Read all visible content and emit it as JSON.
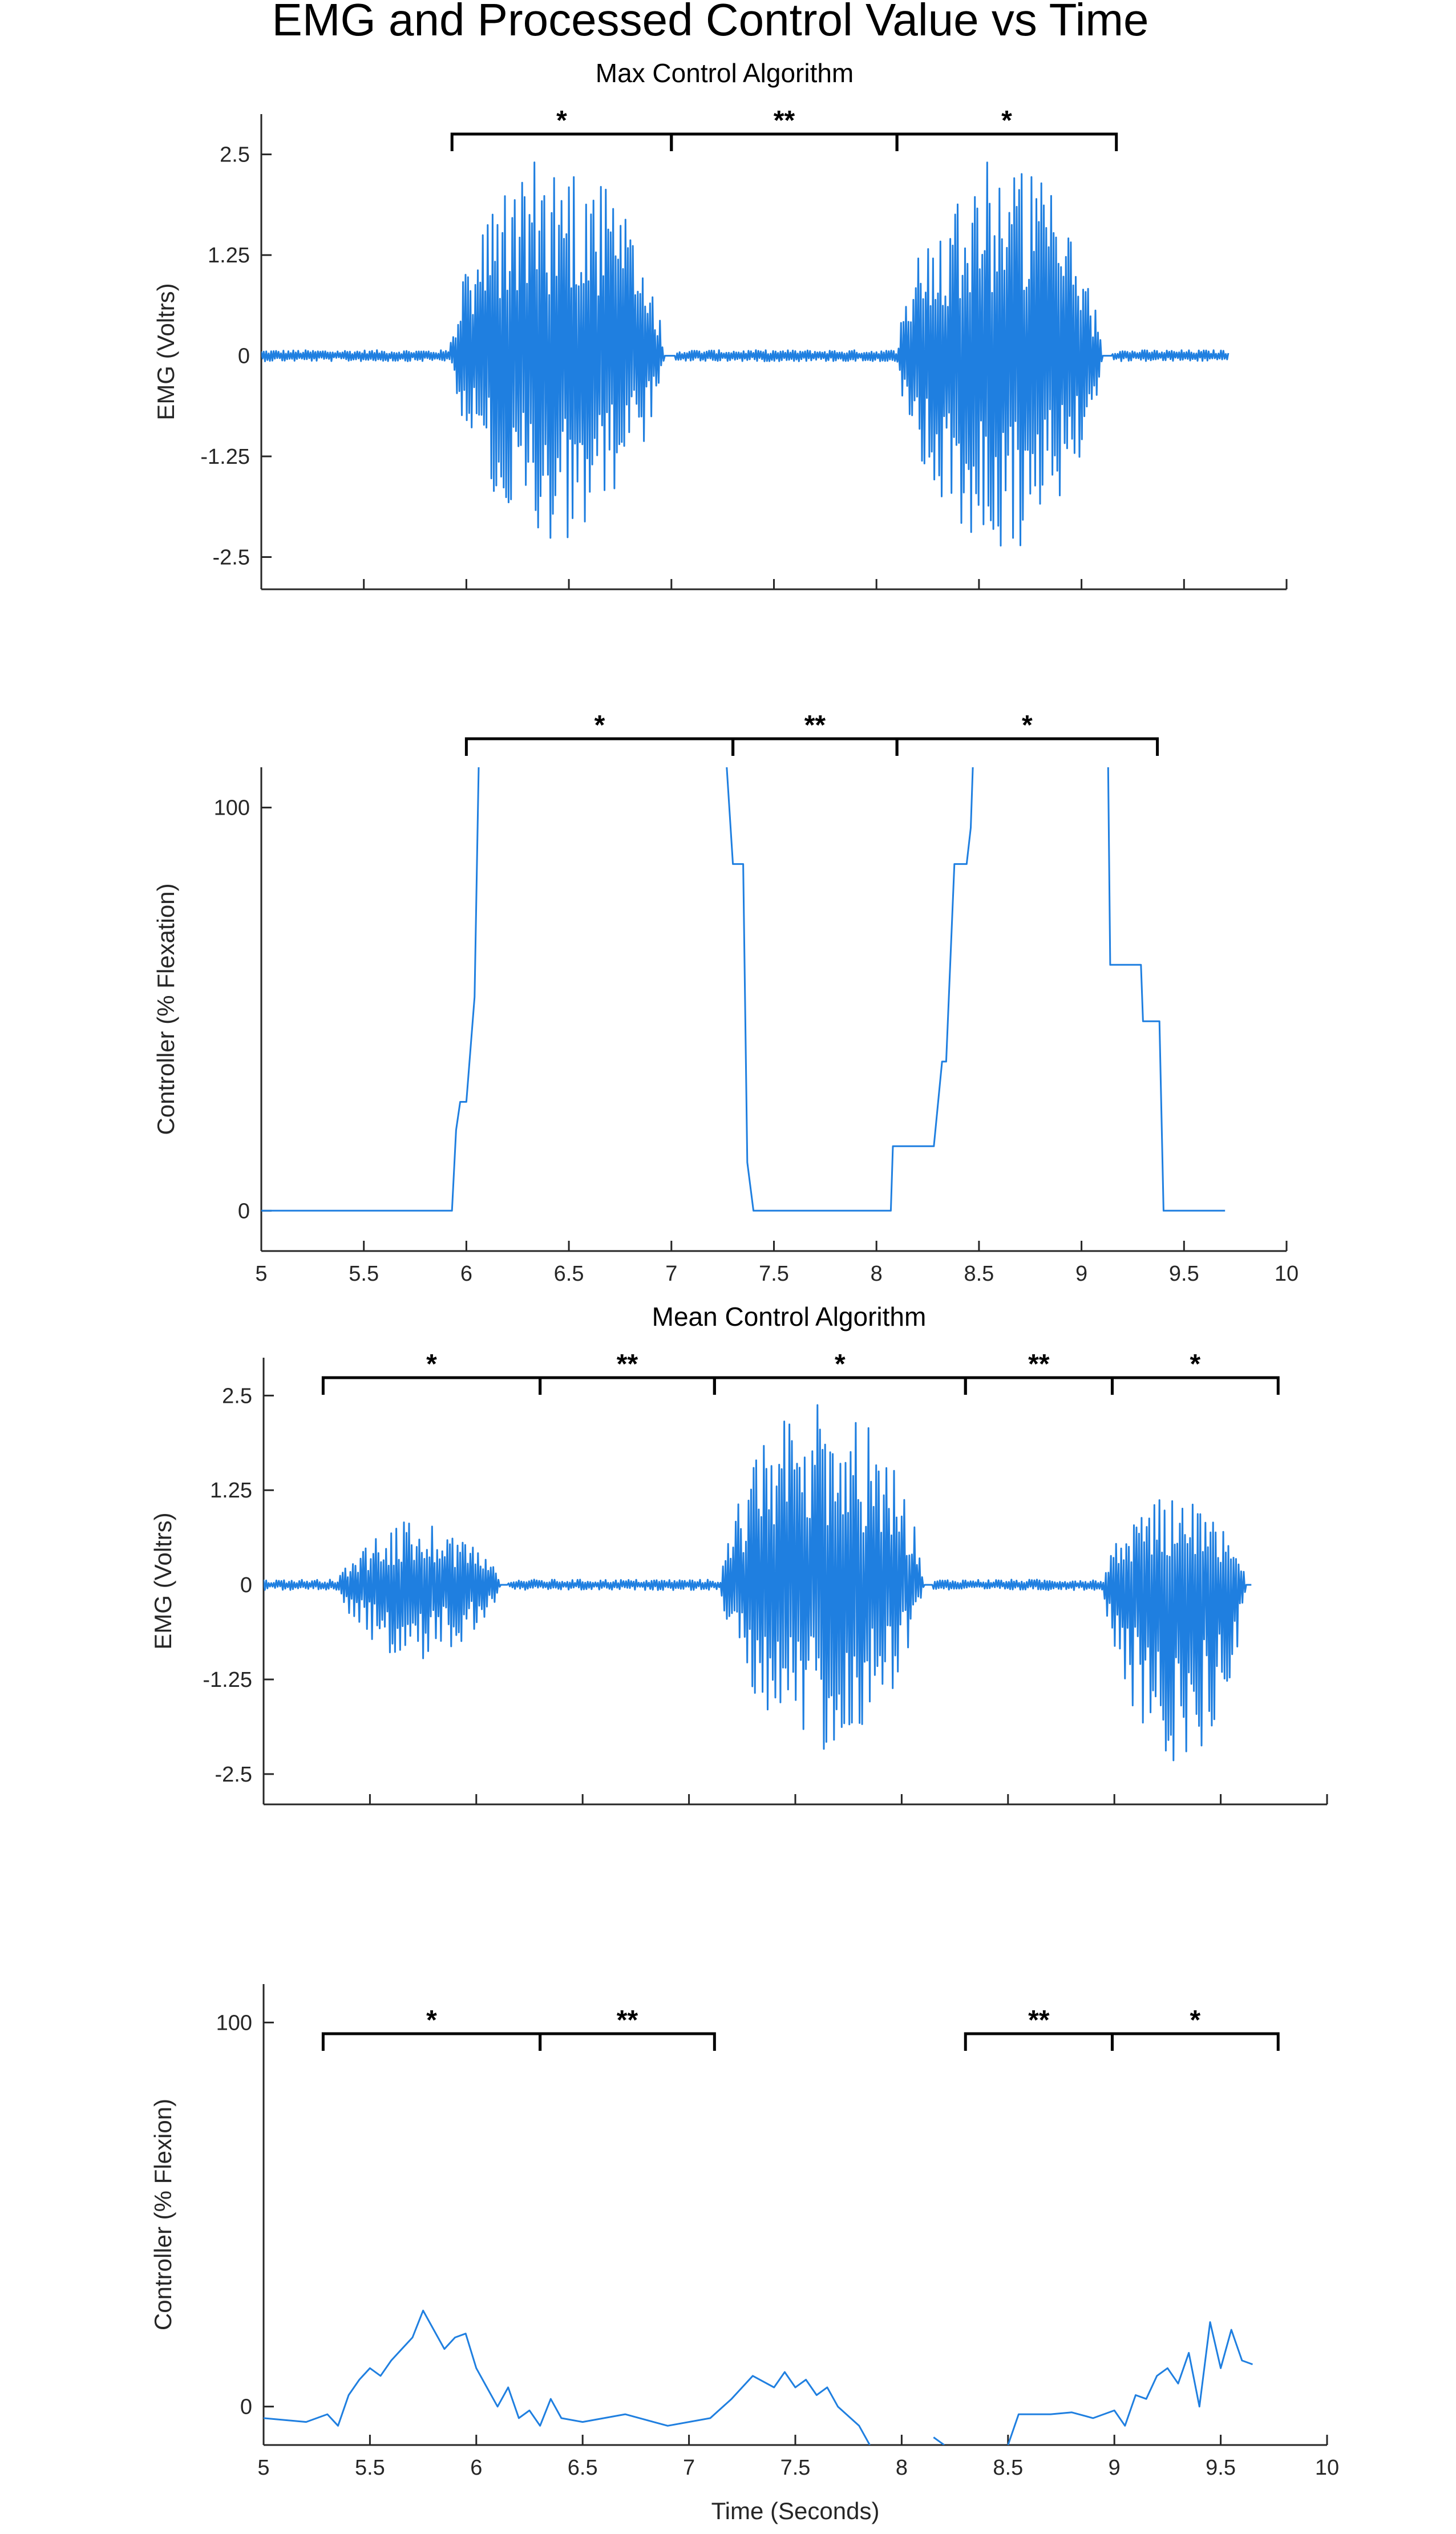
{
  "figure": {
    "title": "EMG and Processed Control Value vs Time",
    "subtitle_max": "Max Control Algorithm",
    "subtitle_mean": "Mean Control Algorithm",
    "line_color": "#1f7fe0"
  },
  "chart_data": [
    {
      "type": "line",
      "panel": "max-emg",
      "title": "Max Control Algorithm",
      "xlabel": "",
      "ylabel": "EMG (Voltrs)",
      "xlim": [
        5,
        10
      ],
      "ylim": [
        -2.9,
        3.0
      ],
      "xticks": [
        5,
        5.5,
        6,
        6.5,
        7,
        7.5,
        8,
        8.5,
        9,
        9.5,
        10
      ],
      "xticklabels": [],
      "yticks": [
        -2.5,
        -1.25,
        0,
        1.25,
        2.5
      ],
      "yticklabels": [
        "-2.5",
        "-1.25",
        "0",
        "1.25",
        "2.5"
      ],
      "grid": false,
      "series": [
        {
          "signal": "emg",
          "t_start": 5.0,
          "t_end": 9.72,
          "bursts": [
            {
              "start": 5.92,
              "end": 7.02,
              "peak_pos": 2.5,
              "peak_neg": -2.3
            },
            {
              "start": 8.1,
              "end": 9.15,
              "peak_pos": 2.5,
              "peak_neg": -2.5
            }
          ],
          "baseline_noise": 0.05
        }
      ],
      "brackets": [
        {
          "x1": 5.93,
          "x2": 7.0,
          "label": "*"
        },
        {
          "x1": 7.0,
          "x2": 8.1,
          "label": "**"
        },
        {
          "x1": 8.1,
          "x2": 9.17,
          "label": "*"
        }
      ]
    },
    {
      "type": "line",
      "panel": "max-controller",
      "title": "",
      "xlabel": "",
      "ylabel": "Controller (% Flexation)",
      "xlim": [
        5,
        10
      ],
      "ylim": [
        -10,
        110
      ],
      "xticks": [
        5,
        5.5,
        6,
        6.5,
        7,
        7.5,
        8,
        8.5,
        9,
        9.5,
        10
      ],
      "xticklabels": [
        "5",
        "5.5",
        "6",
        "6.5",
        "7",
        "7.5",
        "8",
        "8.5",
        "9",
        "9.5",
        "10"
      ],
      "yticks": [
        0,
        100
      ],
      "yticklabels": [
        "0",
        "100"
      ],
      "grid": false,
      "series": [
        {
          "segments": [
            [
              [
                5.0,
                0
              ],
              [
                5.93,
                0
              ],
              [
                5.95,
                20
              ],
              [
                5.97,
                27
              ],
              [
                6.0,
                27
              ],
              [
                6.04,
                53
              ],
              [
                6.06,
                110
              ]
            ],
            [
              [
                7.27,
                110
              ],
              [
                7.3,
                86
              ],
              [
                7.35,
                86
              ],
              [
                7.37,
                12
              ],
              [
                7.4,
                0
              ],
              [
                8.07,
                0
              ],
              [
                8.08,
                16
              ],
              [
                8.28,
                16
              ],
              [
                8.32,
                37
              ],
              [
                8.34,
                37
              ],
              [
                8.38,
                86
              ],
              [
                8.44,
                86
              ],
              [
                8.46,
                95
              ],
              [
                8.47,
                110
              ]
            ],
            [
              [
                9.13,
                110
              ],
              [
                9.14,
                61
              ],
              [
                9.29,
                61
              ],
              [
                9.3,
                47
              ],
              [
                9.38,
                47
              ],
              [
                9.4,
                0
              ],
              [
                9.7,
                0
              ]
            ]
          ]
        }
      ],
      "brackets": [
        {
          "x1": 6.0,
          "x2": 7.3,
          "label": "*"
        },
        {
          "x1": 7.3,
          "x2": 8.1,
          "label": "**"
        },
        {
          "x1": 8.1,
          "x2": 9.37,
          "label": "*"
        }
      ]
    },
    {
      "type": "line",
      "panel": "mean-emg",
      "title": "Mean Control Algorithm",
      "xlabel": "",
      "ylabel": "EMG (Voltrs)",
      "xlim": [
        5,
        10
      ],
      "ylim": [
        -2.9,
        3.0
      ],
      "xticks": [
        5,
        5.5,
        6,
        6.5,
        7,
        7.5,
        8,
        8.5,
        9,
        9.5,
        10
      ],
      "xticklabels": [],
      "yticks": [
        -2.5,
        -1.25,
        0,
        1.25,
        2.5
      ],
      "yticklabels": [
        "-2.5",
        "-1.25",
        "0",
        "1.25",
        "2.5"
      ],
      "grid": false,
      "series": [
        {
          "signal": "emg",
          "t_start": 5.0,
          "t_end": 9.65,
          "bursts": [
            {
              "start": 5.35,
              "end": 6.15,
              "peak_pos": 0.85,
              "peak_neg": -1.0
            },
            {
              "start": 7.15,
              "end": 8.15,
              "peak_pos": 2.5,
              "peak_neg": -2.2
            },
            {
              "start": 8.95,
              "end": 9.65,
              "peak_pos": 1.2,
              "peak_neg": -2.4
            }
          ],
          "baseline_noise": 0.05
        }
      ],
      "brackets": [
        {
          "x1": 5.28,
          "x2": 6.3,
          "label": "*"
        },
        {
          "x1": 6.3,
          "x2": 7.12,
          "label": "**"
        },
        {
          "x1": 7.12,
          "x2": 8.3,
          "label": "*"
        },
        {
          "x1": 8.3,
          "x2": 8.99,
          "label": "**"
        },
        {
          "x1": 8.99,
          "x2": 9.77,
          "label": "*"
        }
      ]
    },
    {
      "type": "line",
      "panel": "mean-controller",
      "title": "",
      "xlabel": "Time (Seconds)",
      "ylabel": "Controller (% Flexion)",
      "xlim": [
        5,
        10
      ],
      "ylim": [
        -10,
        110
      ],
      "xticks": [
        5,
        5.5,
        6,
        6.5,
        7,
        7.5,
        8,
        8.5,
        9,
        9.5,
        10
      ],
      "xticklabels": [
        "5",
        "5.5",
        "6",
        "6.5",
        "7",
        "7.5",
        "8",
        "8.5",
        "9",
        "9.5",
        "10"
      ],
      "yticks": [
        0,
        100
      ],
      "yticklabels": [
        "0",
        "100"
      ],
      "grid": false,
      "series": [
        {
          "segments": [
            [
              [
                5.0,
                -3
              ],
              [
                5.1,
                -3.5
              ],
              [
                5.2,
                -4
              ],
              [
                5.3,
                -2
              ],
              [
                5.35,
                -5
              ],
              [
                5.4,
                3
              ],
              [
                5.45,
                7
              ],
              [
                5.5,
                10
              ],
              [
                5.55,
                8
              ],
              [
                5.6,
                12
              ],
              [
                5.65,
                15
              ],
              [
                5.7,
                18
              ],
              [
                5.75,
                25
              ],
              [
                5.8,
                20
              ],
              [
                5.85,
                15
              ],
              [
                5.9,
                18
              ],
              [
                5.95,
                19
              ],
              [
                6.0,
                10
              ],
              [
                6.05,
                5
              ],
              [
                6.1,
                0
              ],
              [
                6.15,
                5
              ],
              [
                6.2,
                -3
              ],
              [
                6.25,
                -1
              ],
              [
                6.3,
                -5
              ],
              [
                6.35,
                2
              ],
              [
                6.4,
                -3
              ],
              [
                6.5,
                -4
              ],
              [
                6.7,
                -2
              ],
              [
                6.9,
                -5
              ],
              [
                7.1,
                -3
              ],
              [
                7.2,
                2
              ],
              [
                7.3,
                8
              ],
              [
                7.4,
                5
              ],
              [
                7.45,
                9
              ],
              [
                7.5,
                5
              ],
              [
                7.55,
                7
              ],
              [
                7.6,
                3
              ],
              [
                7.65,
                5
              ],
              [
                7.7,
                0
              ],
              [
                7.8,
                -5
              ],
              [
                7.85,
                -10
              ]
            ],
            [
              [
                8.15,
                -8
              ],
              [
                8.2,
                -10
              ]
            ],
            [
              [
                8.5,
                -10
              ],
              [
                8.55,
                -2
              ],
              [
                8.7,
                -2
              ],
              [
                8.8,
                -1.5
              ],
              [
                8.9,
                -3
              ],
              [
                9.0,
                -1
              ],
              [
                9.05,
                -5
              ],
              [
                9.1,
                3
              ],
              [
                9.15,
                2
              ],
              [
                9.2,
                8
              ],
              [
                9.25,
                10
              ],
              [
                9.3,
                6
              ],
              [
                9.35,
                14
              ],
              [
                9.4,
                0
              ],
              [
                9.45,
                22
              ],
              [
                9.5,
                10
              ],
              [
                9.55,
                20
              ],
              [
                9.6,
                12
              ],
              [
                9.65,
                11
              ]
            ]
          ]
        }
      ],
      "brackets": [
        {
          "x1": 5.28,
          "x2": 6.3,
          "label": "*"
        },
        {
          "x1": 6.3,
          "x2": 7.12,
          "label": "**"
        },
        {
          "x1": 8.3,
          "x2": 8.99,
          "label": "**"
        },
        {
          "x1": 8.99,
          "x2": 9.77,
          "label": "*"
        }
      ]
    }
  ]
}
